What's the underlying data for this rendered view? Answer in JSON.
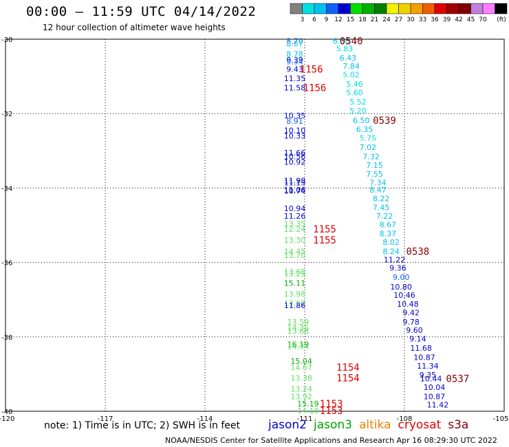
{
  "header": {
    "title": "00:00 — 11:59 UTC 04/14/2022",
    "subtitle": "12 hour collection of altimeter wave heights"
  },
  "colorbar": {
    "unit": "(ft)",
    "levels": [
      "3",
      "6",
      "9",
      "12",
      "15",
      "18",
      "21",
      "24",
      "27",
      "30",
      "33",
      "36",
      "39",
      "42",
      "45",
      "70"
    ],
    "colors": [
      "#808080",
      "#00e0e0",
      "#00c0f0",
      "#1060ff",
      "#0000d0",
      "#00e000",
      "#00b000",
      "#008000",
      "#f0f000",
      "#f0d000",
      "#f0a000",
      "#f06000",
      "#e00000",
      "#a00000",
      "#800000",
      "#c080e0",
      "#ff80ff",
      "#000000"
    ]
  },
  "footer": {
    "note": "note: 1) Time is in UTC; 2) SWH is in feet",
    "credit": "NOAA/NESDIS Center for Satellite Applications and Research   Apr 16 08:29:30 UTC 2022",
    "legend": [
      {
        "name": "jason2",
        "color": "#0000d0"
      },
      {
        "name": "jason3",
        "color": "#00a000"
      },
      {
        "name": "altika",
        "color": "#f08000"
      },
      {
        "name": "cryosat",
        "color": "#e00000"
      },
      {
        "name": "s3a",
        "color": "#800000"
      }
    ]
  },
  "chart_data": {
    "type": "scatter",
    "title": "00:00 — 11:59 UTC 04/14/2022",
    "subtitle": "12 hour collection of altimeter wave heights",
    "xlim": [
      -120,
      -105
    ],
    "ylim": [
      -40,
      -30
    ],
    "x_ticks": [
      "-120",
      "-117",
      "-114",
      "-111",
      "-108",
      "-105"
    ],
    "y_ticks": [
      "-30",
      "-32",
      "-34",
      "-36",
      "-38",
      "-40"
    ],
    "grid": true,
    "points": [
      {
        "lon": -111.3,
        "lat": -30.05,
        "v": "8.70",
        "c": "#1060ff"
      },
      {
        "lon": -111.3,
        "lat": -30.12,
        "v": "8.67",
        "c": "#00c0f0"
      },
      {
        "lon": -111.3,
        "lat": -30.4,
        "v": "8.78",
        "c": "#00c0f0"
      },
      {
        "lon": -111.3,
        "lat": -30.55,
        "v": "9.39",
        "c": "#0000d0"
      },
      {
        "lon": -111.3,
        "lat": -30.6,
        "v": "9.34",
        "c": "#1060ff"
      },
      {
        "lon": -111.3,
        "lat": -30.8,
        "v": "9.43",
        "c": "#0000d0"
      },
      {
        "lon": -111.3,
        "lat": -31.05,
        "v": "11.35",
        "c": "#0000d0"
      },
      {
        "lon": -111.3,
        "lat": -31.3,
        "v": "11.58",
        "c": "#0000d0"
      },
      {
        "lon": -111.3,
        "lat": -32.05,
        "v": "10.35",
        "c": "#0000d0"
      },
      {
        "lon": -111.3,
        "lat": -32.2,
        "v": "8.91",
        "c": "#1060ff"
      },
      {
        "lon": -111.3,
        "lat": -32.45,
        "v": "10.10",
        "c": "#0000d0"
      },
      {
        "lon": -111.3,
        "lat": -32.6,
        "v": "10.33",
        "c": "#0000d0"
      },
      {
        "lon": -111.3,
        "lat": -33.05,
        "v": "11.66",
        "c": "#0000d0"
      },
      {
        "lon": -111.3,
        "lat": -33.15,
        "v": "10.56",
        "c": "#0000d0"
      },
      {
        "lon": -111.3,
        "lat": -33.3,
        "v": "10.92",
        "c": "#0000d0"
      },
      {
        "lon": -111.3,
        "lat": -33.8,
        "v": "11.98",
        "c": "#0000d0"
      },
      {
        "lon": -111.3,
        "lat": -33.85,
        "v": "11.13",
        "c": "#0000d0"
      },
      {
        "lon": -111.3,
        "lat": -34.05,
        "v": "11.06",
        "c": "#0000d0"
      },
      {
        "lon": -111.3,
        "lat": -34.08,
        "v": "10.74",
        "c": "#0000d0"
      },
      {
        "lon": -111.3,
        "lat": -34.55,
        "v": "10.94",
        "c": "#0000d0"
      },
      {
        "lon": -111.3,
        "lat": -34.75,
        "v": "11.26",
        "c": "#0000d0"
      },
      {
        "lon": -111.3,
        "lat": -34.95,
        "v": "13.35",
        "c": "#60e060"
      },
      {
        "lon": -111.3,
        "lat": -35.1,
        "v": "12.24",
        "c": "#60e060"
      },
      {
        "lon": -111.3,
        "lat": -35.4,
        "v": "13.30",
        "c": "#60e060"
      },
      {
        "lon": -111.3,
        "lat": -35.7,
        "v": "14.45",
        "c": "#60e060"
      },
      {
        "lon": -111.3,
        "lat": -35.8,
        "v": "13.70",
        "c": "#60e060"
      },
      {
        "lon": -111.3,
        "lat": -36.25,
        "v": "13.68",
        "c": "#60e060"
      },
      {
        "lon": -111.3,
        "lat": -36.3,
        "v": "13.25",
        "c": "#60e060"
      },
      {
        "lon": -111.3,
        "lat": -36.55,
        "v": "15.11",
        "c": "#00b000"
      },
      {
        "lon": -111.3,
        "lat": -36.85,
        "v": "13.98",
        "c": "#60e060"
      },
      {
        "lon": -111.3,
        "lat": -37.1,
        "v": "13.59",
        "c": "#60e060"
      },
      {
        "lon": -111.3,
        "lat": -37.15,
        "v": "11.86",
        "c": "#0000d0"
      },
      {
        "lon": -111.2,
        "lat": -37.6,
        "v": "13.59",
        "c": "#60e060"
      },
      {
        "lon": -111.2,
        "lat": -37.75,
        "v": "14.35",
        "c": "#60e060"
      },
      {
        "lon": -111.2,
        "lat": -37.85,
        "v": "13.68",
        "c": "#60e060"
      },
      {
        "lon": -111.2,
        "lat": -38.2,
        "v": "16.19",
        "c": "#00b000"
      },
      {
        "lon": -111.2,
        "lat": -38.25,
        "v": "14.34",
        "c": "#60e060"
      },
      {
        "lon": -111.1,
        "lat": -38.65,
        "v": "15.04",
        "c": "#00b000"
      },
      {
        "lon": -111.1,
        "lat": -38.82,
        "v": "14.67",
        "c": "#60e060"
      },
      {
        "lon": -111.1,
        "lat": -39.1,
        "v": "13.38",
        "c": "#60e060"
      },
      {
        "lon": -111.1,
        "lat": -39.4,
        "v": "13.24",
        "c": "#60e060"
      },
      {
        "lon": -111.1,
        "lat": -39.6,
        "v": "13.92",
        "c": "#60e060"
      },
      {
        "lon": -110.9,
        "lat": -39.8,
        "v": "15.19",
        "c": "#00b000"
      },
      {
        "lon": -110.9,
        "lat": -39.98,
        "v": "14.10",
        "c": "#60e060"
      },
      {
        "lon": -109.9,
        "lat": -30.05,
        "v": "6.38",
        "c": "#00c0f0"
      },
      {
        "lon": -109.8,
        "lat": -30.25,
        "v": "5.83",
        "c": "#00e0e0"
      },
      {
        "lon": -109.7,
        "lat": -30.5,
        "v": "6.43",
        "c": "#00c0f0"
      },
      {
        "lon": -109.6,
        "lat": -30.72,
        "v": "7.84",
        "c": "#00c0f0"
      },
      {
        "lon": -109.6,
        "lat": -30.95,
        "v": "5.02",
        "c": "#00e0e0"
      },
      {
        "lon": -109.5,
        "lat": -31.2,
        "v": "5.46",
        "c": "#00e0e0"
      },
      {
        "lon": -109.5,
        "lat": -31.43,
        "v": "5.60",
        "c": "#00e0e0"
      },
      {
        "lon": -109.4,
        "lat": -31.68,
        "v": "5.52",
        "c": "#00e0e0"
      },
      {
        "lon": -109.4,
        "lat": -31.92,
        "v": "5.20",
        "c": "#00e0e0"
      },
      {
        "lon": -109.3,
        "lat": -32.18,
        "v": "6.50",
        "c": "#00c0f0"
      },
      {
        "lon": -109.2,
        "lat": -32.42,
        "v": "6.35",
        "c": "#00c0f0"
      },
      {
        "lon": -109.1,
        "lat": -32.65,
        "v": "5.75",
        "c": "#00e0e0"
      },
      {
        "lon": -109.1,
        "lat": -32.9,
        "v": "7.02",
        "c": "#00c0f0"
      },
      {
        "lon": -109.0,
        "lat": -33.15,
        "v": "7.32",
        "c": "#00c0f0"
      },
      {
        "lon": -108.9,
        "lat": -33.38,
        "v": "7.15",
        "c": "#00c0f0"
      },
      {
        "lon": -108.9,
        "lat": -33.62,
        "v": "7.55",
        "c": "#00c0f0"
      },
      {
        "lon": -108.8,
        "lat": -33.85,
        "v": "7.34",
        "c": "#00c0f0"
      },
      {
        "lon": -108.8,
        "lat": -34.05,
        "v": "8.47",
        "c": "#00c0f0"
      },
      {
        "lon": -108.7,
        "lat": -34.28,
        "v": "8.22",
        "c": "#00c0f0"
      },
      {
        "lon": -108.7,
        "lat": -34.52,
        "v": "7.45",
        "c": "#00c0f0"
      },
      {
        "lon": -108.6,
        "lat": -34.75,
        "v": "7.22",
        "c": "#00c0f0"
      },
      {
        "lon": -108.5,
        "lat": -34.98,
        "v": "8.67",
        "c": "#00c0f0"
      },
      {
        "lon": -108.5,
        "lat": -35.22,
        "v": "8.37",
        "c": "#00c0f0"
      },
      {
        "lon": -108.4,
        "lat": -35.45,
        "v": "8.02",
        "c": "#00c0f0"
      },
      {
        "lon": -108.4,
        "lat": -35.7,
        "v": "8.24",
        "c": "#00c0f0"
      },
      {
        "lon": -108.3,
        "lat": -35.92,
        "v": "11.22",
        "c": "#0000d0"
      },
      {
        "lon": -108.2,
        "lat": -36.15,
        "v": "9.36",
        "c": "#0000d0"
      },
      {
        "lon": -108.1,
        "lat": -36.4,
        "v": "9.00",
        "c": "#1060ff"
      },
      {
        "lon": -108.1,
        "lat": -36.65,
        "v": "10.80",
        "c": "#0000d0"
      },
      {
        "lon": -108.0,
        "lat": -36.88,
        "v": "10.46",
        "c": "#0000d0"
      },
      {
        "lon": -107.9,
        "lat": -37.12,
        "v": "10.48",
        "c": "#0000d0"
      },
      {
        "lon": -107.8,
        "lat": -37.35,
        "v": "9.42",
        "c": "#0000d0"
      },
      {
        "lon": -107.8,
        "lat": -37.6,
        "v": "9.78",
        "c": "#0000d0"
      },
      {
        "lon": -107.7,
        "lat": -37.82,
        "v": "9.60",
        "c": "#0000d0"
      },
      {
        "lon": -107.6,
        "lat": -38.05,
        "v": "9.14",
        "c": "#0000d0"
      },
      {
        "lon": -107.5,
        "lat": -38.3,
        "v": "11.68",
        "c": "#0000d0"
      },
      {
        "lon": -107.4,
        "lat": -38.55,
        "v": "10.87",
        "c": "#0000d0"
      },
      {
        "lon": -107.3,
        "lat": -38.78,
        "v": "11.34",
        "c": "#0000d0"
      },
      {
        "lon": -107.3,
        "lat": -39.02,
        "v": "9.35",
        "c": "#0000d0"
      },
      {
        "lon": -107.2,
        "lat": -39.12,
        "v": "10.44",
        "c": "#0000d0"
      },
      {
        "lon": -107.1,
        "lat": -39.35,
        "v": "10.04",
        "c": "#0000d0"
      },
      {
        "lon": -107.1,
        "lat": -39.6,
        "v": "10.87",
        "c": "#0000d0"
      },
      {
        "lon": -107.0,
        "lat": -39.82,
        "v": "11.42",
        "c": "#0000d0"
      }
    ],
    "time_labels": [
      {
        "lon": -109.6,
        "lat": -30.05,
        "t": "0540",
        "c": "#800000"
      },
      {
        "lon": -110.8,
        "lat": -30.8,
        "t": "1156",
        "c": "#e00000"
      },
      {
        "lon": -110.7,
        "lat": -31.3,
        "t": "1156",
        "c": "#e00000"
      },
      {
        "lon": -108.6,
        "lat": -32.18,
        "t": "0539",
        "c": "#800000"
      },
      {
        "lon": -110.4,
        "lat": -35.1,
        "t": "1155",
        "c": "#e00000"
      },
      {
        "lon": -110.4,
        "lat": -35.4,
        "t": "1155",
        "c": "#e00000"
      },
      {
        "lon": -107.6,
        "lat": -35.7,
        "t": "0538",
        "c": "#800000"
      },
      {
        "lon": -109.7,
        "lat": -38.82,
        "t": "1154",
        "c": "#e00000"
      },
      {
        "lon": -109.7,
        "lat": -39.1,
        "t": "1154",
        "c": "#e00000"
      },
      {
        "lon": -106.4,
        "lat": -39.12,
        "t": "0537",
        "c": "#800000"
      },
      {
        "lon": -110.2,
        "lat": -39.8,
        "t": "1153",
        "c": "#e00000"
      },
      {
        "lon": -110.2,
        "lat": -39.98,
        "t": "1153",
        "c": "#e00000"
      }
    ]
  }
}
